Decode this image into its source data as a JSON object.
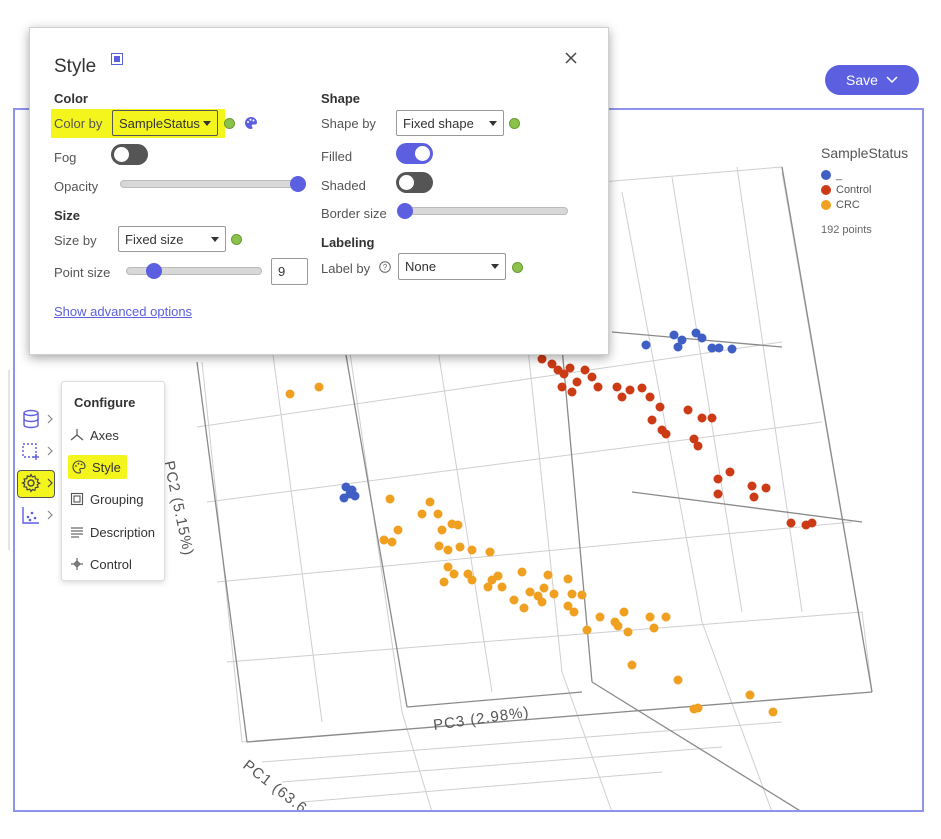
{
  "header": {
    "save_label": "Save"
  },
  "legend": {
    "title": "SampleStatus",
    "items": [
      {
        "label": "_",
        "color": "#3f5fc4"
      },
      {
        "label": "Control",
        "color": "#cc3a16"
      },
      {
        "label": "CRC",
        "color": "#f0a020"
      }
    ],
    "count": "192 points"
  },
  "axes": {
    "pc1": "PC1 (63.6",
    "pc2": "PC2 (5.15%)",
    "pc3": "PC3 (2.98%)"
  },
  "configure_menu": {
    "title": "Configure",
    "items": [
      {
        "label": "Axes",
        "icon": "axes-icon"
      },
      {
        "label": "Style",
        "icon": "palette-icon"
      },
      {
        "label": "Grouping",
        "icon": "grouping-icon"
      },
      {
        "label": "Description",
        "icon": "description-icon"
      },
      {
        "label": "Control",
        "icon": "control-icon"
      }
    ]
  },
  "toolstrip": {
    "icons": [
      "database-icon",
      "selection-icon",
      "gear-icon",
      "scatter-icon"
    ]
  },
  "style_dialog": {
    "title": "Style",
    "color": {
      "section": "Color",
      "color_by_label": "Color by",
      "color_by_value": "SampleStatus",
      "fog_label": "Fog",
      "fog_on": false,
      "opacity_label": "Opacity",
      "opacity_value": 1.0
    },
    "size": {
      "section": "Size",
      "size_by_label": "Size by",
      "size_by_value": "Fixed size",
      "point_size_label": "Point size",
      "point_size_value": "9"
    },
    "shape": {
      "section": "Shape",
      "shape_by_label": "Shape by",
      "shape_by_value": "Fixed shape",
      "filled_label": "Filled",
      "filled_on": true,
      "shaded_label": "Shaded",
      "shaded_on": false,
      "border_size_label": "Border size",
      "border_size_value": 0
    },
    "labeling": {
      "section": "Labeling",
      "label_by_label": "Label by",
      "label_by_value": "None"
    },
    "advanced_link": "Show advanced options"
  },
  "colors": {
    "accent": "#5b5fe0",
    "highlight": "#f5f51e",
    "status_ok": "#8bc34a"
  }
}
